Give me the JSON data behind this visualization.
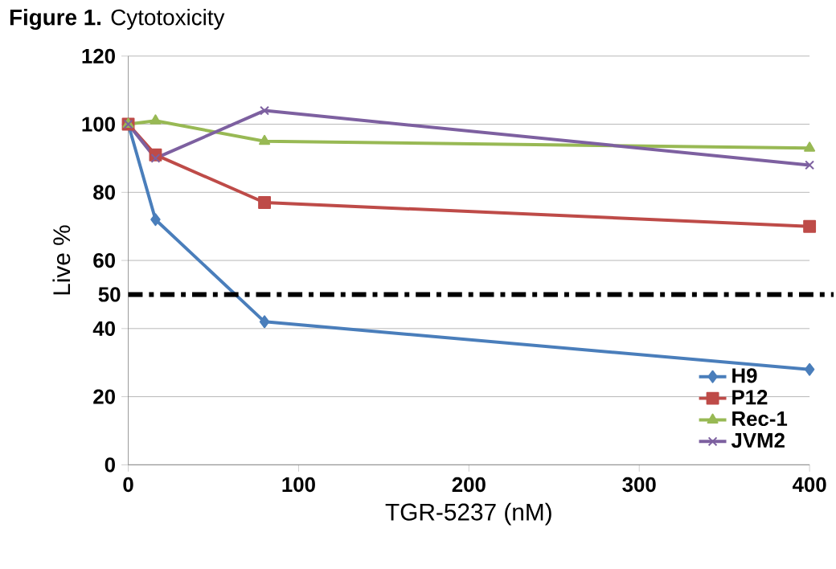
{
  "chart_data": {
    "type": "line",
    "title": "**Figure 1.** Cytotoxicity",
    "xlabel": "TGR-5237 (nM)",
    "ylabel": "Live %",
    "x": [
      0,
      16,
      80,
      400
    ],
    "series": [
      {
        "name": "H9",
        "color": "#4a7ebb",
        "marker": "diamond",
        "values": [
          100,
          72,
          42,
          28
        ]
      },
      {
        "name": "P12",
        "color": "#be4b48",
        "marker": "square",
        "values": [
          100,
          91,
          77,
          70
        ]
      },
      {
        "name": "Rec-1",
        "color": "#98b954",
        "marker": "triangle",
        "values": [
          100,
          101,
          95,
          93
        ]
      },
      {
        "name": "JVM2",
        "color": "#7d60a0",
        "marker": "cross",
        "values": [
          100,
          90,
          104,
          88
        ]
      }
    ],
    "xlim": [
      0,
      400
    ],
    "xticks": [
      0,
      100,
      200,
      300,
      400
    ],
    "ylim": [
      0,
      120
    ],
    "yticks": [
      0,
      20,
      40,
      60,
      80,
      100,
      120
    ],
    "ref_lines": [
      {
        "axis": "y",
        "value": 50,
        "label": "50",
        "color": "#000000",
        "line_style": "dashed"
      }
    ],
    "grid": "y",
    "legend": "bottom right"
  }
}
